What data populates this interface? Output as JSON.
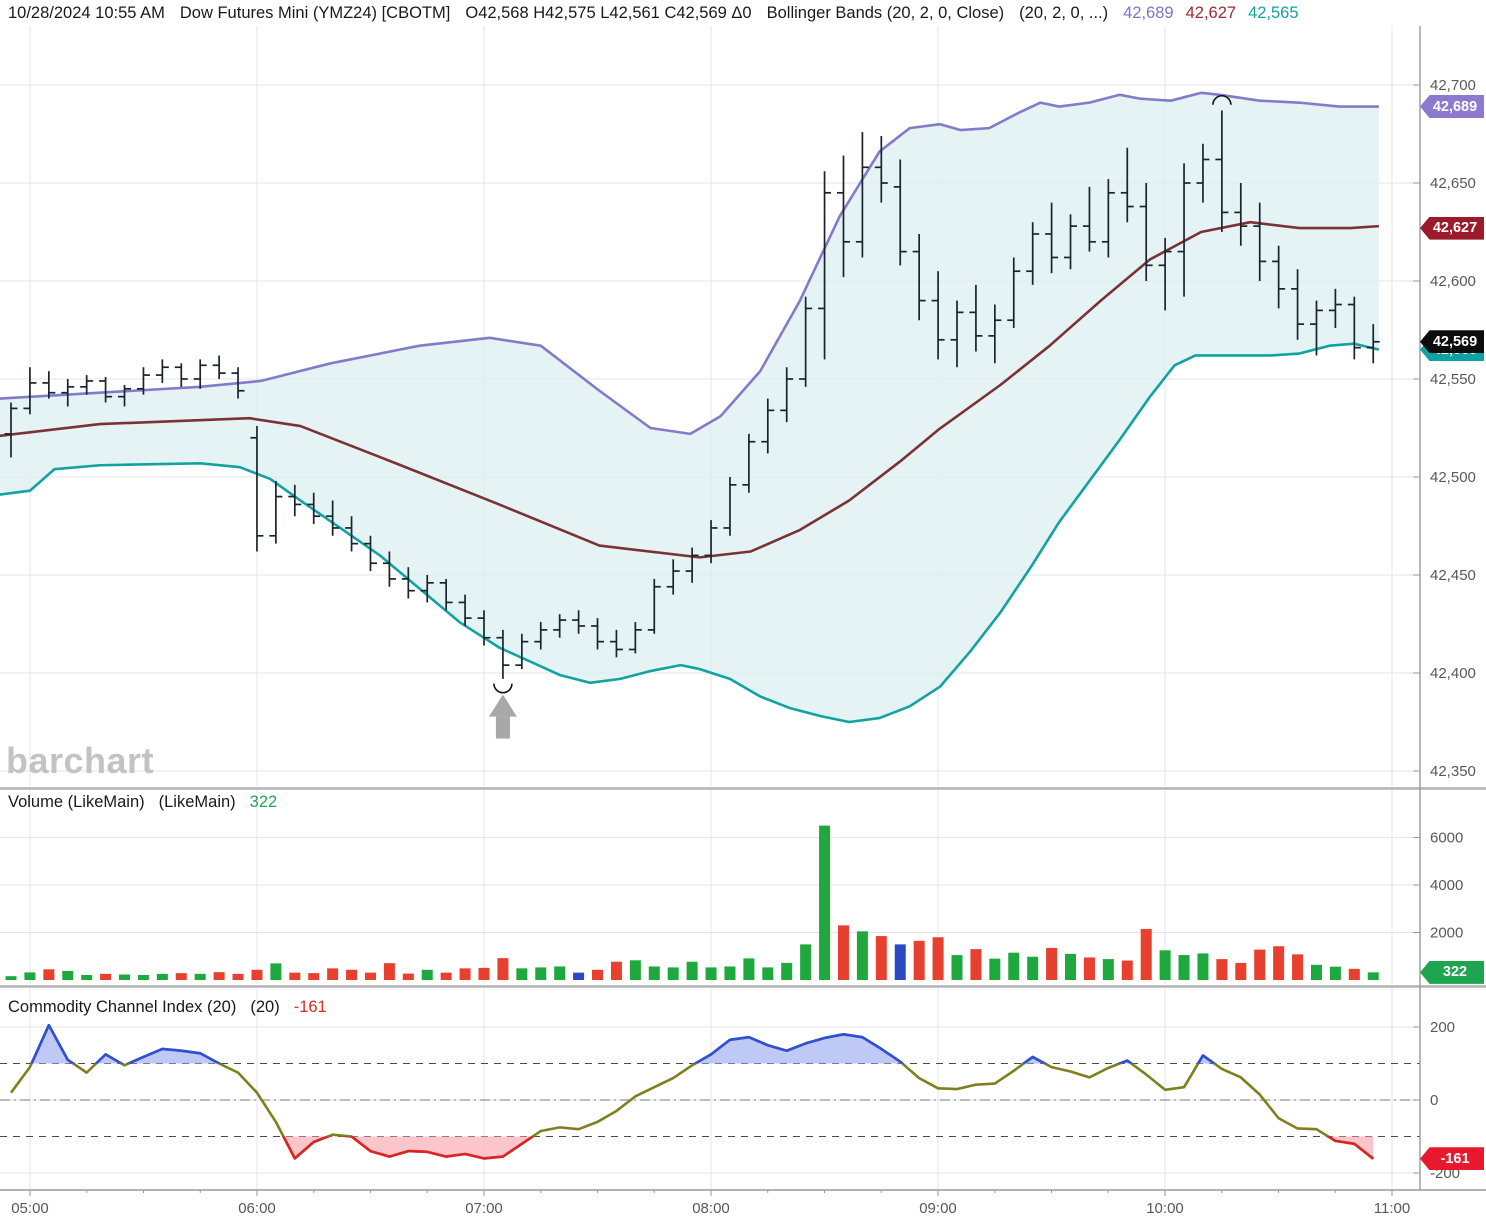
{
  "header": {
    "datetime": "10/28/2024 10:55 AM",
    "symbol": "Dow Futures Mini (YMZ24) [CBOTM]",
    "ohlc": "O42,568 H42,575 L42,561 C42,569 Δ0",
    "study": "Bollinger Bands (20, 2, 0, Close)",
    "study_params": "(20, 2, 0, ...)",
    "values": [
      {
        "text": "42,689",
        "color": "#7d74c9"
      },
      {
        "text": "42,627",
        "color": "#9c2b33"
      },
      {
        "text": "42,565",
        "color": "#13a3a3"
      }
    ]
  },
  "watermark": "barchart",
  "volume_panel": {
    "title": "Volume (LikeMain)",
    "title2": "(LikeMain)",
    "value": "322",
    "value_color": "#27a358"
  },
  "cci_panel": {
    "title": "Commodity Channel Index (20)",
    "title2": "(20)",
    "value": "-161",
    "value_color": "#d93025"
  },
  "badges": [
    {
      "name": "badge-upper-band",
      "text": "42,689",
      "bg": "#8d7ad0",
      "panel": "price",
      "value": 42689
    },
    {
      "name": "badge-middle-band",
      "text": "42,627",
      "bg": "#9c1b2a",
      "panel": "price",
      "value": 42627
    },
    {
      "name": "badge-lower-band",
      "text": "42,565",
      "bg": "#10a2a2",
      "panel": "price",
      "value": 42565
    },
    {
      "name": "badge-last-price",
      "text": "42,569",
      "bg": "#0d0d0d",
      "panel": "price",
      "value": 42569
    },
    {
      "name": "badge-volume",
      "text": "322",
      "bg": "#1fa450",
      "panel": "volume",
      "value": 322
    },
    {
      "name": "badge-cci",
      "text": "-161",
      "bg": "#e8192c",
      "panel": "cci",
      "value": -161
    }
  ],
  "chart_data": {
    "type": "ohlc",
    "x_labels": [
      "05:00",
      "06:00",
      "07:00",
      "08:00",
      "09:00",
      "10:00",
      "11:00"
    ],
    "ylim": [
      42350,
      42700
    ],
    "price_ticks": [
      42700,
      42650,
      42600,
      42550,
      42500,
      42450,
      42400,
      42350
    ],
    "price_tick_labels": [
      "42,700",
      "42,650",
      "42,600",
      "42,550",
      "42,500",
      "42,450",
      "42,400",
      "42,350"
    ],
    "volume_ticks": [
      6000,
      4000,
      2000
    ],
    "volume_tick_labels": [
      "6000",
      "4000",
      "2000"
    ],
    "cci_ticks": [
      200,
      0,
      -200
    ],
    "cci_tick_labels": [
      "200",
      "0",
      "-200"
    ],
    "cci_levels": {
      "overbought": 100,
      "oversold": -100
    },
    "times": [
      "04:55",
      "05:00",
      "05:05",
      "05:10",
      "05:15",
      "05:20",
      "05:25",
      "05:30",
      "05:35",
      "05:40",
      "05:45",
      "05:50",
      "05:55",
      "06:00",
      "06:05",
      "06:10",
      "06:15",
      "06:20",
      "06:25",
      "06:30",
      "06:35",
      "06:40",
      "06:45",
      "06:50",
      "06:55",
      "07:00",
      "07:05",
      "07:10",
      "07:15",
      "07:20",
      "07:25",
      "07:30",
      "07:35",
      "07:40",
      "07:45",
      "07:50",
      "07:55",
      "08:00",
      "08:05",
      "08:10",
      "08:15",
      "08:20",
      "08:25",
      "08:30",
      "08:35",
      "08:40",
      "08:45",
      "08:50",
      "08:55",
      "09:00",
      "09:05",
      "09:10",
      "09:15",
      "09:20",
      "09:25",
      "09:30",
      "09:35",
      "09:40",
      "09:45",
      "09:50",
      "09:55",
      "10:00",
      "10:05",
      "10:10",
      "10:15",
      "10:20",
      "10:25",
      "10:30",
      "10:35",
      "10:40",
      "10:45",
      "10:50",
      "10:55"
    ],
    "ohlc": [
      [
        42522,
        42538,
        42510,
        42535
      ],
      [
        42535,
        42556,
        42532,
        42548
      ],
      [
        42548,
        42554,
        42540,
        42543
      ],
      [
        42543,
        42550,
        42536,
        42546
      ],
      [
        42546,
        42552,
        42542,
        42549
      ],
      [
        42549,
        42551,
        42538,
        42541
      ],
      [
        42541,
        42547,
        42536,
        42545
      ],
      [
        42545,
        42556,
        42542,
        42552
      ],
      [
        42552,
        42560,
        42548,
        42556
      ],
      [
        42556,
        42558,
        42546,
        42550
      ],
      [
        42550,
        42560,
        42545,
        42557
      ],
      [
        42557,
        42562,
        42550,
        42553
      ],
      [
        42553,
        42556,
        42540,
        42544
      ],
      [
        42520,
        42526,
        42462,
        42470
      ],
      [
        42470,
        42498,
        42466,
        42490
      ],
      [
        42490,
        42496,
        42480,
        42486
      ],
      [
        42486,
        42492,
        42476,
        42480
      ],
      [
        42480,
        42488,
        42470,
        42474
      ],
      [
        42474,
        42480,
        42462,
        42466
      ],
      [
        42466,
        42470,
        42452,
        42456
      ],
      [
        42456,
        42462,
        42444,
        42448
      ],
      [
        42448,
        42454,
        42438,
        42442
      ],
      [
        42442,
        42450,
        42436,
        42446
      ],
      [
        42446,
        42448,
        42432,
        42436
      ],
      [
        42436,
        42440,
        42424,
        42428
      ],
      [
        42428,
        42432,
        42414,
        42418
      ],
      [
        42418,
        42422,
        42397,
        42404
      ],
      [
        42404,
        42420,
        42402,
        42416
      ],
      [
        42416,
        42426,
        42412,
        42422
      ],
      [
        42422,
        42430,
        42418,
        42427
      ],
      [
        42427,
        42432,
        42420,
        42424
      ],
      [
        42424,
        42428,
        42412,
        42416
      ],
      [
        42416,
        42422,
        42408,
        42412
      ],
      [
        42412,
        42426,
        42410,
        42422
      ],
      [
        42422,
        42448,
        42420,
        42444
      ],
      [
        42444,
        42458,
        42440,
        42452
      ],
      [
        42452,
        42464,
        42446,
        42460
      ],
      [
        42460,
        42478,
        42456,
        42474
      ],
      [
        42474,
        42500,
        42470,
        42496
      ],
      [
        42496,
        42522,
        42492,
        42518
      ],
      [
        42518,
        42540,
        42512,
        42534
      ],
      [
        42534,
        42556,
        42528,
        42550
      ],
      [
        42550,
        42592,
        42546,
        42586
      ],
      [
        42586,
        42656,
        42560,
        42645
      ],
      [
        42645,
        42664,
        42602,
        42620
      ],
      [
        42620,
        42676,
        42612,
        42658
      ],
      [
        42658,
        42674,
        42640,
        42650
      ],
      [
        42648,
        42662,
        42608,
        42615
      ],
      [
        42615,
        42624,
        42580,
        42590
      ],
      [
        42590,
        42605,
        42560,
        42570
      ],
      [
        42570,
        42590,
        42556,
        42584
      ],
      [
        42584,
        42598,
        42564,
        42572
      ],
      [
        42572,
        42588,
        42558,
        42580
      ],
      [
        42580,
        42612,
        42576,
        42605
      ],
      [
        42605,
        42630,
        42598,
        42624
      ],
      [
        42624,
        42640,
        42604,
        42612
      ],
      [
        42612,
        42634,
        42606,
        42628
      ],
      [
        42628,
        42648,
        42615,
        42620
      ],
      [
        42620,
        42652,
        42612,
        42645
      ],
      [
        42645,
        42668,
        42630,
        42638
      ],
      [
        42638,
        42650,
        42600,
        42608
      ],
      [
        42608,
        42622,
        42585,
        42615
      ],
      [
        42615,
        42660,
        42592,
        42650
      ],
      [
        42650,
        42670,
        42640,
        42662
      ],
      [
        42662,
        42687,
        42625,
        42635
      ],
      [
        42635,
        42650,
        42618,
        42628
      ],
      [
        42628,
        42640,
        42600,
        42610
      ],
      [
        42610,
        42618,
        42586,
        42596
      ],
      [
        42596,
        42606,
        42570,
        42578
      ],
      [
        42578,
        42590,
        42562,
        42585
      ],
      [
        42585,
        42596,
        42576,
        42588
      ],
      [
        42588,
        42592,
        42560,
        42566
      ],
      [
        42566,
        42578,
        42558,
        42569
      ]
    ],
    "volume": [
      160,
      320,
      450,
      380,
      210,
      260,
      230,
      210,
      260,
      290,
      260,
      330,
      260,
      430,
      700,
      310,
      290,
      490,
      430,
      310,
      710,
      270,
      430,
      310,
      490,
      510,
      920,
      490,
      530,
      570,
      310,
      430,
      770,
      830,
      570,
      530,
      770,
      530,
      570,
      910,
      530,
      720,
      1500,
      6500,
      2300,
      2050,
      1850,
      1500,
      1650,
      1800,
      1050,
      1300,
      900,
      1150,
      980,
      1350,
      1100,
      950,
      880,
      820,
      2150,
      1250,
      1050,
      1120,
      880,
      720,
      1280,
      1420,
      1080,
      640,
      560,
      470,
      322
    ],
    "volume_colors": "ggrggrgggrgrrrgrrrrrrrgrrrrgggbrrgggggggggggrgrbrrgrgggrgrgrrgggrrrrrggrg",
    "bollinger": {
      "upper": [
        [
          -0.6,
          42540
        ],
        [
          4.7,
          42543
        ],
        [
          10.0,
          42546
        ],
        [
          13.2,
          42549
        ],
        [
          16.9,
          42558
        ],
        [
          21.6,
          42567
        ],
        [
          25.3,
          42571
        ],
        [
          28.0,
          42567
        ],
        [
          31.1,
          42544
        ],
        [
          33.8,
          42525
        ],
        [
          35.9,
          42522
        ],
        [
          37.5,
          42531
        ],
        [
          39.6,
          42554
        ],
        [
          41.7,
          42590
        ],
        [
          43.8,
          42633
        ],
        [
          45.9,
          42666
        ],
        [
          47.5,
          42678
        ],
        [
          49.1,
          42680
        ],
        [
          50.2,
          42677
        ],
        [
          51.7,
          42678
        ],
        [
          53.3,
          42686
        ],
        [
          54.4,
          42691
        ],
        [
          55.4,
          42689
        ],
        [
          57.0,
          42691
        ],
        [
          58.6,
          42695
        ],
        [
          59.7,
          42693
        ],
        [
          61.3,
          42692
        ],
        [
          62.9,
          42696
        ],
        [
          63.9,
          42695
        ],
        [
          66.0,
          42692
        ],
        [
          68.1,
          42691
        ],
        [
          70.2,
          42689
        ],
        [
          72.3,
          42689
        ]
      ],
      "middle": [
        [
          -0.6,
          42521
        ],
        [
          4.7,
          42527
        ],
        [
          12.6,
          42530
        ],
        [
          15.3,
          42526
        ],
        [
          20.6,
          42506
        ],
        [
          25.8,
          42486
        ],
        [
          31.1,
          42465
        ],
        [
          36.4,
          42459
        ],
        [
          39.1,
          42462
        ],
        [
          41.7,
          42473
        ],
        [
          44.3,
          42488
        ],
        [
          47.0,
          42508
        ],
        [
          49.0,
          42524
        ],
        [
          52.3,
          42547
        ],
        [
          54.9,
          42567
        ],
        [
          57.6,
          42590
        ],
        [
          60.2,
          42611
        ],
        [
          62.9,
          42625
        ],
        [
          65.5,
          42630
        ],
        [
          68.1,
          42627
        ],
        [
          70.8,
          42627
        ],
        [
          72.3,
          42628
        ]
      ],
      "lower": [
        [
          -0.6,
          42491
        ],
        [
          1.0,
          42493
        ],
        [
          2.3,
          42504
        ],
        [
          4.7,
          42506
        ],
        [
          10.0,
          42507
        ],
        [
          12.1,
          42505
        ],
        [
          13.7,
          42499
        ],
        [
          15.3,
          42488
        ],
        [
          17.4,
          42474
        ],
        [
          19.5,
          42460
        ],
        [
          21.6,
          42443
        ],
        [
          23.7,
          42426
        ],
        [
          25.8,
          42413
        ],
        [
          27.4,
          42406
        ],
        [
          29.0,
          42399
        ],
        [
          30.6,
          42395
        ],
        [
          32.2,
          42397
        ],
        [
          33.8,
          42401
        ],
        [
          35.4,
          42404
        ],
        [
          36.4,
          42402
        ],
        [
          38.0,
          42397
        ],
        [
          39.6,
          42388
        ],
        [
          41.2,
          42382
        ],
        [
          42.8,
          42378
        ],
        [
          44.3,
          42375
        ],
        [
          45.9,
          42377
        ],
        [
          47.5,
          42383
        ],
        [
          49.1,
          42393
        ],
        [
          50.7,
          42411
        ],
        [
          52.3,
          42431
        ],
        [
          53.9,
          42454
        ],
        [
          55.4,
          42477
        ],
        [
          57.0,
          42498
        ],
        [
          58.6,
          42519
        ],
        [
          60.2,
          42541
        ],
        [
          61.5,
          42557
        ],
        [
          62.6,
          42562
        ],
        [
          64.4,
          42562
        ],
        [
          66.6,
          42562
        ],
        [
          68.1,
          42563
        ],
        [
          69.7,
          42567
        ],
        [
          71.0,
          42568
        ],
        [
          72.3,
          42565
        ]
      ]
    },
    "cci": [
      20,
      90,
      205,
      110,
      75,
      125,
      95,
      118,
      140,
      135,
      128,
      100,
      75,
      20,
      -60,
      -160,
      -115,
      -95,
      -100,
      -140,
      -155,
      -140,
      -142,
      -155,
      -148,
      -160,
      -155,
      -120,
      -85,
      -75,
      -80,
      -60,
      -30,
      10,
      35,
      60,
      95,
      125,
      165,
      172,
      150,
      135,
      155,
      170,
      180,
      172,
      140,
      105,
      60,
      32,
      30,
      42,
      45,
      80,
      118,
      90,
      78,
      62,
      88,
      108,
      70,
      28,
      35,
      122,
      85,
      62,
      15,
      -50,
      -78,
      -80,
      -112,
      -120,
      -161
    ],
    "markers": [
      {
        "type": "smile",
        "bar": 26,
        "price": 42392
      },
      {
        "type": "frown",
        "bar": 64,
        "price": 42694
      },
      {
        "type": "arrow-up",
        "bar": 26,
        "price": 42390
      }
    ],
    "colors": {
      "up": "#1fa83d",
      "down": "#e8402e",
      "neutral": "#2b49c4",
      "bar": "#18242e",
      "band_upper": "#837bc9",
      "band_middle": "#7a3236",
      "band_lower": "#12a3a1",
      "band_fill": "#def0f2",
      "cci_line": "#7e7f1d",
      "cci_high": "#2e4fd8",
      "cci_high_fill": "#b3c0f5",
      "cci_low": "#e02126",
      "cci_low_fill": "#f9bcc3",
      "grid": "#e4e4e4",
      "axis_line": "#999999",
      "axis_text": "#595959",
      "marker": "#111111",
      "arrow": "#a8a8a8",
      "separator": "#b3b3b3"
    }
  }
}
